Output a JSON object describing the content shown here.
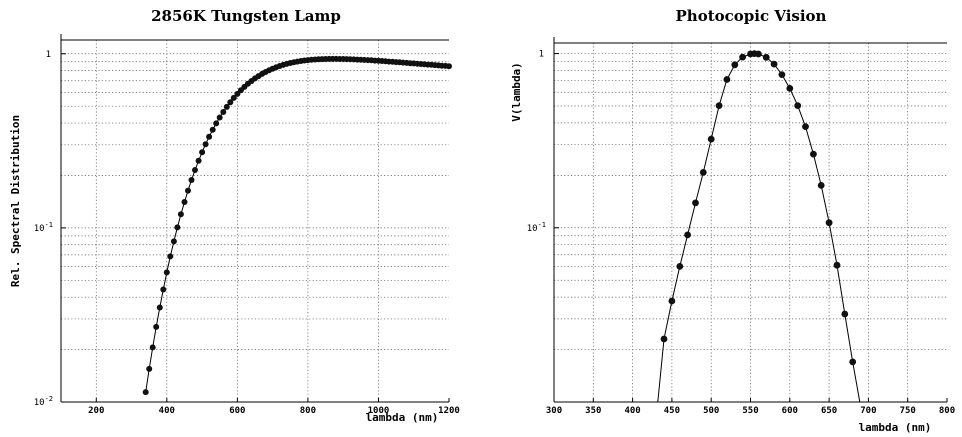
{
  "chart_data": [
    {
      "type": "scatter",
      "title": "2856K Tungsten Lamp",
      "xlabel": "lambda (nm)",
      "ylabel": "Rel. Spectral Distribution",
      "xlim": [
        100,
        1200
      ],
      "ylim": [
        0.01,
        1.2
      ],
      "yscale": "log",
      "grid": true,
      "legend": "none",
      "x_ticks": [
        "200",
        "400",
        "600",
        "800",
        "1000",
        "1200"
      ],
      "x_tick_values": [
        200,
        400,
        600,
        800,
        1000,
        1200
      ],
      "y_ticks": [
        {
          "mantissa": "10",
          "exp": "-2",
          "value": 0.01
        },
        {
          "mantissa": "10",
          "exp": "-1",
          "value": 0.1
        },
        {
          "mantissa": "1",
          "exp": "",
          "value": 1
        }
      ],
      "series": [
        {
          "marker": "circle",
          "x": [
            340,
            350,
            360,
            370,
            380,
            390,
            400,
            410,
            420,
            430,
            440,
            450,
            460,
            470,
            480,
            490,
            500,
            510,
            520,
            530,
            540,
            550,
            560,
            570,
            580,
            590,
            600,
            610,
            620,
            630,
            640,
            650,
            660,
            670,
            680,
            690,
            700,
            710,
            720,
            730,
            740,
            750,
            760,
            770,
            780,
            790,
            800,
            810,
            820,
            830,
            840,
            850,
            860,
            870,
            880,
            890,
            900,
            910,
            920,
            930,
            940,
            950,
            960,
            970,
            980,
            990,
            1000,
            1010,
            1020,
            1030,
            1040,
            1050,
            1060,
            1070,
            1080,
            1090,
            1100,
            1110,
            1120,
            1130,
            1140,
            1150,
            1160,
            1170,
            1180,
            1190,
            1200
          ],
          "y": [
            0.0114,
            0.0155,
            0.0206,
            0.027,
            0.0349,
            0.0443,
            0.0555,
            0.0686,
            0.0836,
            0.1007,
            0.1197,
            0.1408,
            0.1638,
            0.1885,
            0.215,
            0.2429,
            0.2722,
            0.3026,
            0.3339,
            0.3659,
            0.3982,
            0.4307,
            0.4632,
            0.4954,
            0.5271,
            0.5581,
            0.5883,
            0.6175,
            0.6455,
            0.6724,
            0.6979,
            0.7221,
            0.7448,
            0.7661,
            0.7859,
            0.8042,
            0.8211,
            0.8366,
            0.8506,
            0.8634,
            0.8748,
            0.885,
            0.8941,
            0.902,
            0.9089,
            0.9148,
            0.9198,
            0.9239,
            0.9272,
            0.9298,
            0.9318,
            0.9332,
            0.934,
            0.9344,
            0.9343,
            0.9338,
            0.9329,
            0.9317,
            0.9303,
            0.9285,
            0.9266,
            0.9244,
            0.9221,
            0.9196,
            0.917,
            0.9142,
            0.9114,
            0.9085,
            0.9055,
            0.9024,
            0.8993,
            0.8962,
            0.893,
            0.8898,
            0.8866,
            0.8834,
            0.8801,
            0.8769,
            0.8737,
            0.8705,
            0.8673,
            0.8641,
            0.8609,
            0.8577,
            0.8546,
            0.8515,
            0.8484
          ]
        }
      ]
    },
    {
      "type": "scatter",
      "title": "Photocopic Vision",
      "xlabel": "lambda (nm)",
      "ylabel": "V(lambda)",
      "xlim": [
        300,
        800
      ],
      "ylim": [
        0.01,
        1.15
      ],
      "yscale": "log",
      "grid": true,
      "legend": "none",
      "x_ticks": [
        "300",
        "350",
        "400",
        "450",
        "500",
        "550",
        "600",
        "650",
        "700",
        "750",
        "800"
      ],
      "x_tick_values": [
        300,
        350,
        400,
        450,
        500,
        550,
        600,
        650,
        700,
        750,
        800
      ],
      "y_ticks": [
        {
          "mantissa": "10",
          "exp": "-1",
          "value": 0.1
        },
        {
          "mantissa": "1",
          "exp": "",
          "value": 1
        }
      ],
      "series": [
        {
          "marker": "circle",
          "x": [
            440,
            450,
            460,
            470,
            480,
            490,
            500,
            510,
            520,
            530,
            540,
            550,
            555,
            560,
            570,
            580,
            590,
            600,
            610,
            620,
            630,
            640,
            650,
            660,
            670,
            680
          ],
          "y": [
            0.023,
            0.038,
            0.06,
            0.091,
            0.139,
            0.208,
            0.323,
            0.503,
            0.71,
            0.862,
            0.954,
            0.995,
            1.0,
            0.995,
            0.952,
            0.87,
            0.757,
            0.631,
            0.503,
            0.381,
            0.265,
            0.175,
            0.107,
            0.061,
            0.032,
            0.017
          ]
        }
      ]
    }
  ]
}
